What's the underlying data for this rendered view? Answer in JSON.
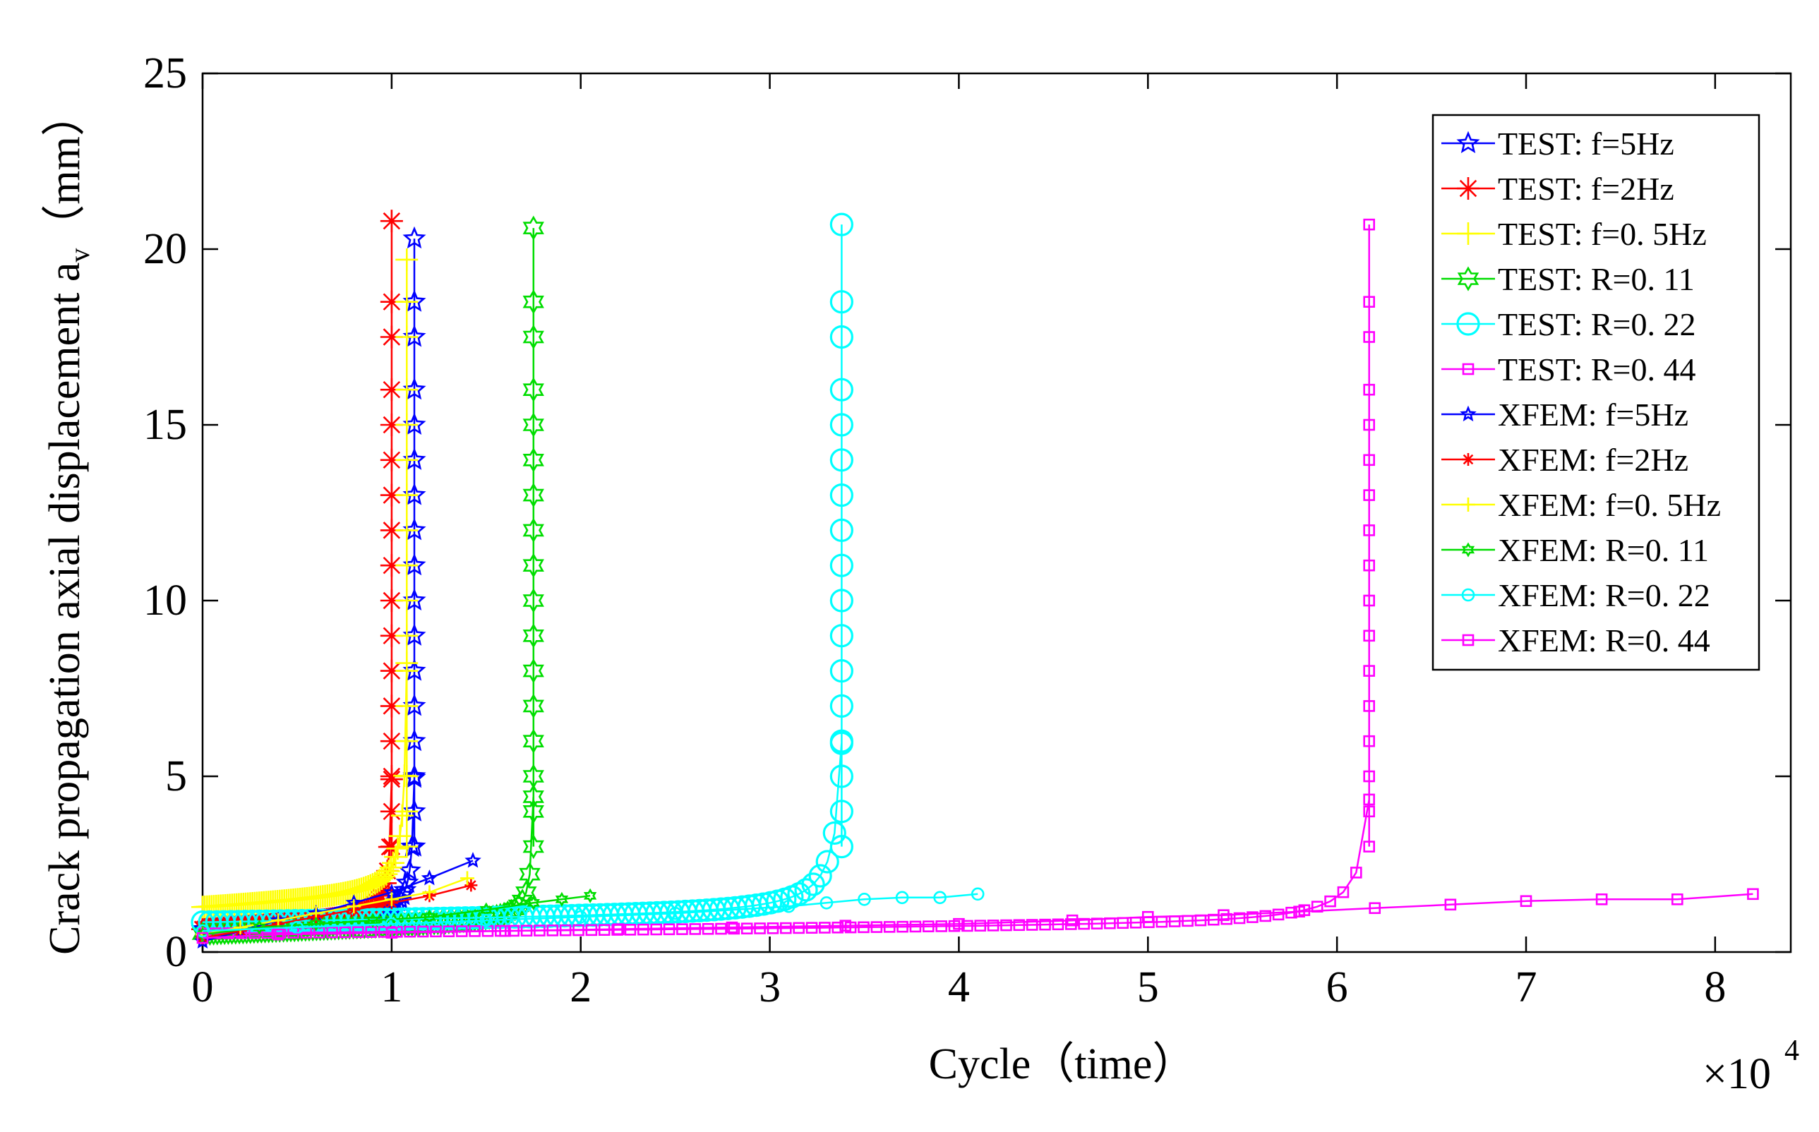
{
  "chart_data": {
    "type": "line",
    "title": "",
    "xlabel": "Cycle（time）",
    "ylabel": "Crack propagation axial displacement    a",
    "ylabel_sub": "v",
    "ylabel_unit": "（mm）",
    "x_multiplier_base": "×10",
    "x_multiplier_exp": "4",
    "xlim": [
      0,
      8.4
    ],
    "ylim": [
      0,
      25
    ],
    "xticks": [
      "0",
      "1",
      "2",
      "3",
      "4",
      "5",
      "6",
      "7",
      "8"
    ],
    "yticks": [
      "0",
      "5",
      "10",
      "15",
      "20",
      "25"
    ],
    "legend_position": "top-right",
    "series": [
      {
        "name": "TEST: f=5Hz",
        "color": "#0000ff",
        "marker": "star-open",
        "curve": {
          "x0": 0,
          "y0": 0.6,
          "xf": 1.12,
          "yf": 20.3,
          "k": 0.013,
          "slope": 0.3
        }
      },
      {
        "name": "TEST: f=2Hz",
        "color": "#ff0000",
        "marker": "asterisk",
        "curve": {
          "x0": 0,
          "y0": 0.6,
          "xf": 1.0,
          "yf": 20.8,
          "k": 0.012,
          "slope": 0.3
        }
      },
      {
        "name": "TEST: f=0. 5Hz",
        "color": "#ffff00",
        "marker": "plus",
        "curve": {
          "x0": 0,
          "y0": 1.2,
          "xf": 1.08,
          "yf": 19.7,
          "k": 0.013,
          "slope": 0.3
        }
      },
      {
        "name": "TEST: R=0. 11",
        "color": "#00dd00",
        "marker": "hexagram-open",
        "curve": {
          "x0": 0,
          "y0": 0.5,
          "xf": 1.75,
          "yf": 20.6,
          "k": 0.012,
          "slope": 0.2
        }
      },
      {
        "name": "TEST: R=0. 22",
        "color": "#00ffff",
        "marker": "circle-open",
        "curve": {
          "x0": 0,
          "y0": 0.8,
          "xf": 3.38,
          "yf": 20.7,
          "k": 0.035,
          "slope": 0.06
        }
      },
      {
        "name": "TEST: R=0. 44",
        "color": "#ff00ff",
        "marker": "square-open",
        "curve": {
          "x0": 0,
          "y0": 0.5,
          "xf": 6.17,
          "yf": 20.7,
          "k": 0.05,
          "slope": 0.04
        }
      },
      {
        "name": "XFEM: f=5Hz",
        "color": "#0000ff",
        "marker": "star",
        "x": [
          0,
          0.2,
          0.4,
          0.6,
          0.8,
          1.0,
          1.2,
          1.43
        ],
        "y": [
          0.3,
          0.6,
          0.9,
          1.1,
          1.4,
          1.7,
          2.1,
          2.6
        ]
      },
      {
        "name": "XFEM: f=2Hz",
        "color": "#ff0000",
        "marker": "asterisk-small",
        "x": [
          0,
          0.2,
          0.4,
          0.6,
          0.8,
          1.0,
          1.2,
          1.42
        ],
        "y": [
          0.4,
          0.6,
          0.8,
          1.0,
          1.2,
          1.4,
          1.6,
          1.9
        ]
      },
      {
        "name": "XFEM: f=0. 5Hz",
        "color": "#ffff00",
        "marker": "plus-small",
        "x": [
          0,
          0.2,
          0.4,
          0.6,
          0.8,
          1.0,
          1.2,
          1.4
        ],
        "y": [
          0.5,
          0.7,
          0.9,
          1.1,
          1.3,
          1.5,
          1.7,
          2.1
        ]
      },
      {
        "name": "XFEM: R=0. 11",
        "color": "#00dd00",
        "marker": "hexagram",
        "x": [
          0,
          0.3,
          0.6,
          0.9,
          1.2,
          1.5,
          1.75,
          1.9,
          2.05
        ],
        "y": [
          0.5,
          0.7,
          0.8,
          0.9,
          1.0,
          1.2,
          1.4,
          1.5,
          1.6
        ]
      },
      {
        "name": "XFEM: R=0. 22",
        "color": "#00ffff",
        "marker": "circle",
        "x": [
          0,
          0.5,
          1.0,
          1.5,
          2.0,
          2.5,
          3.1,
          3.3,
          3.5,
          3.7,
          3.9,
          4.1
        ],
        "y": [
          0.6,
          0.7,
          0.8,
          0.9,
          1.0,
          1.1,
          1.3,
          1.4,
          1.5,
          1.55,
          1.55,
          1.65
        ]
      },
      {
        "name": "XFEM: R=0. 44",
        "color": "#ff00ff",
        "marker": "square",
        "x": [
          0,
          0.4,
          1.0,
          1.6,
          2.2,
          2.8,
          3.4,
          4.0,
          4.6,
          5.0,
          5.4,
          5.8,
          6.2,
          6.6,
          7.0,
          7.4,
          7.8,
          8.2
        ],
        "y": [
          0.4,
          0.5,
          0.55,
          0.6,
          0.65,
          0.7,
          0.75,
          0.8,
          0.9,
          1.0,
          1.05,
          1.15,
          1.25,
          1.35,
          1.45,
          1.5,
          1.5,
          1.65
        ]
      }
    ]
  }
}
